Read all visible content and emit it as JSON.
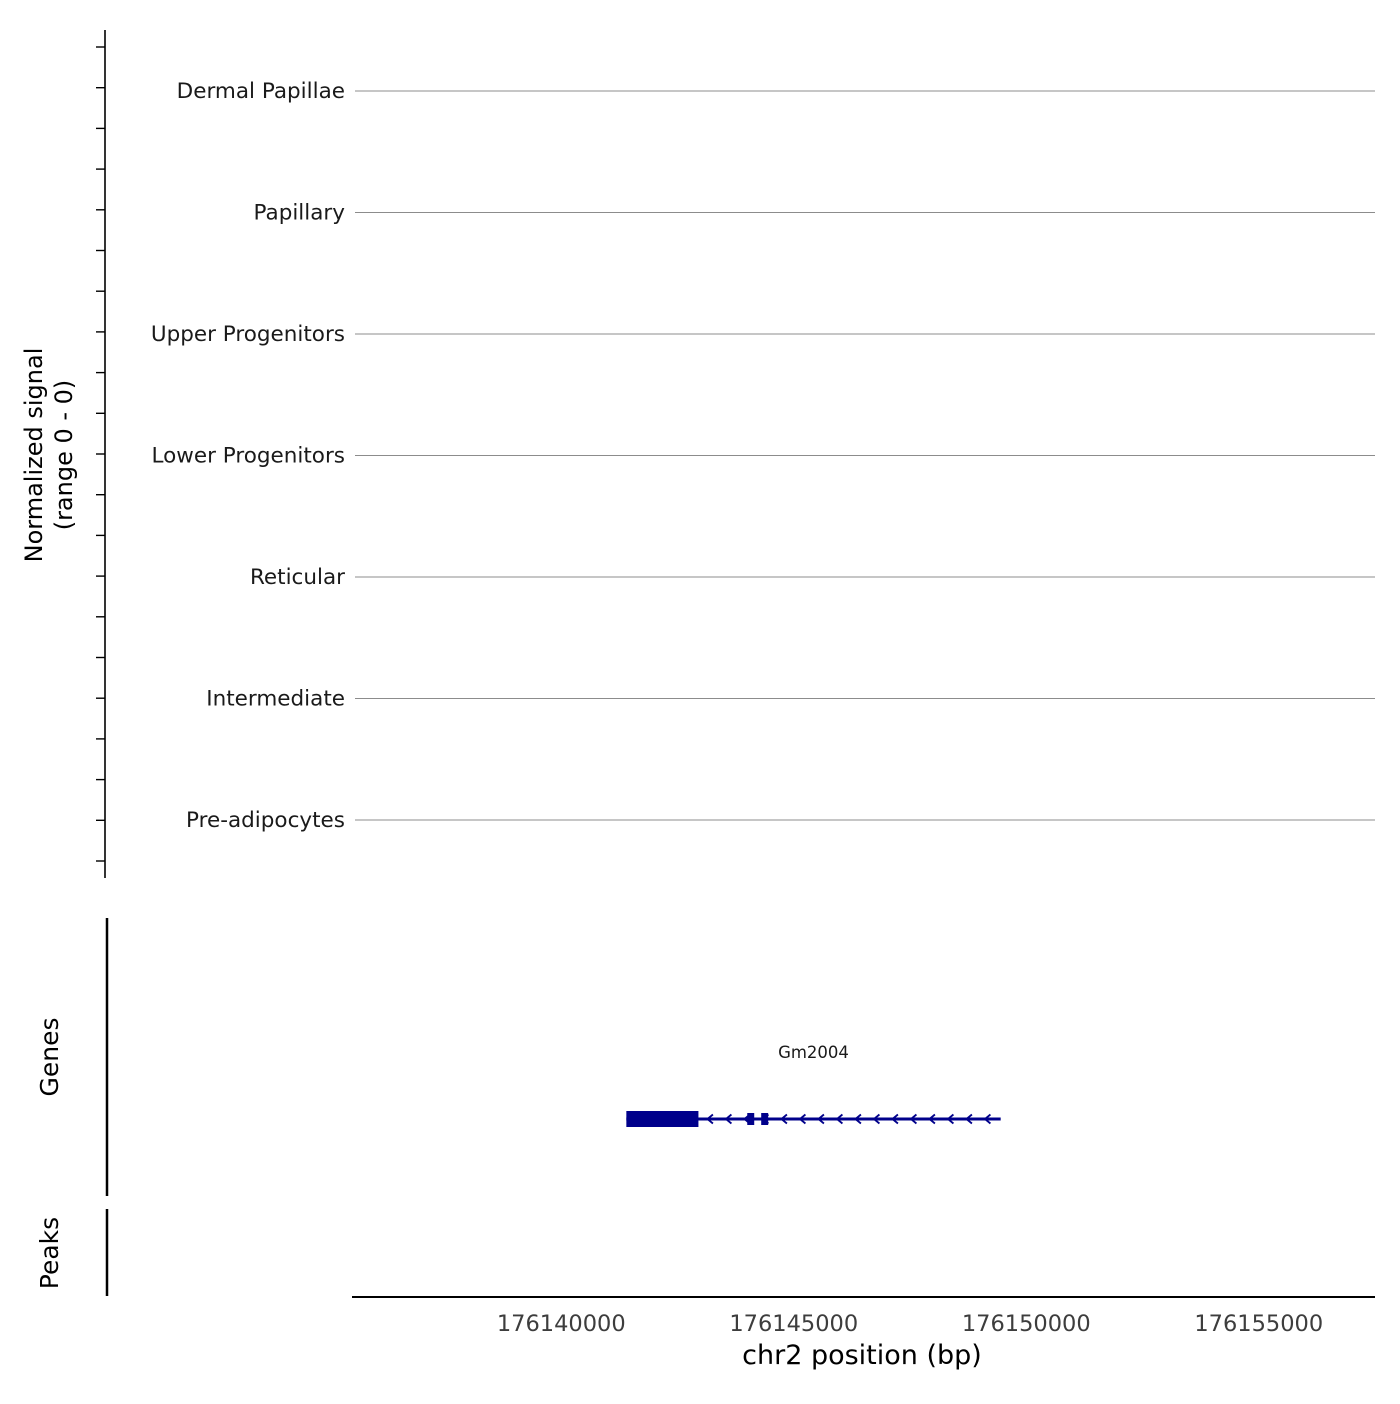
{
  "figure": {
    "ylabel_line1": "Normalized signal",
    "ylabel_line2": "(range 0 - 0)",
    "xlabel": "chr2 position (bp)",
    "genes_label": "Genes",
    "peaks_label": "Peaks"
  },
  "chart_data": {
    "type": "genome-tracks",
    "title": "",
    "chrom": "chr2",
    "xlabel": "chr2 position (bp)",
    "ylabel": "Normalized signal (range 0 - 0)",
    "xlim": [
      176135500,
      176157500
    ],
    "xticks": [
      176140000,
      176145000,
      176150000,
      176155000
    ],
    "signal_range": [
      0,
      0
    ],
    "signal_tracks": [
      {
        "label": "Dermal Papillae",
        "range": [
          0,
          0
        ],
        "signal": 0
      },
      {
        "label": "Papillary",
        "range": [
          0,
          0
        ],
        "signal": 0
      },
      {
        "label": "Upper Progenitors",
        "range": [
          0,
          0
        ],
        "signal": 0
      },
      {
        "label": "Lower Progenitors",
        "range": [
          0,
          0
        ],
        "signal": 0
      },
      {
        "label": "Reticular",
        "range": [
          0,
          0
        ],
        "signal": 0
      },
      {
        "label": "Intermediate",
        "range": [
          0,
          0
        ],
        "signal": 0
      },
      {
        "label": "Pre-adipocytes",
        "range": [
          0,
          0
        ],
        "signal": 0
      }
    ],
    "genes": [
      {
        "name": "Gm2004",
        "chrom": "chr2",
        "start": 176141400,
        "end": 176149450,
        "strand": "-",
        "thick_end": 176142950,
        "exons": [
          {
            "start": 176141400,
            "end": 176142950,
            "thick": true
          },
          {
            "start": 176144000,
            "end": 176144150,
            "thick": false
          },
          {
            "start": 176144300,
            "end": 176144450,
            "thick": false
          }
        ]
      }
    ],
    "peaks": [],
    "colors": {
      "gene": "#00008b",
      "track_line": "#8c8c8c",
      "axis": "#000000",
      "tick_label": "#3d3d3d",
      "label_text": "#1a1a1a"
    }
  }
}
